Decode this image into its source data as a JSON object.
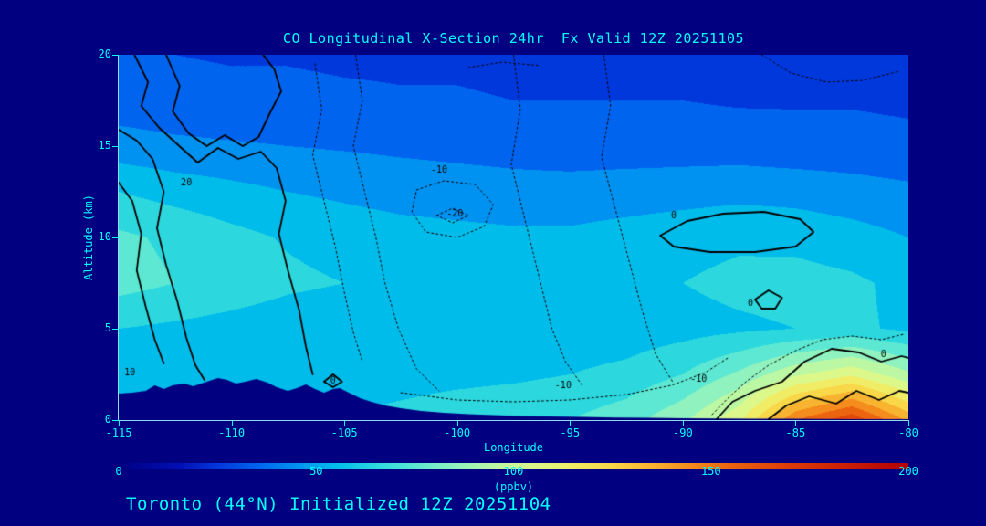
{
  "page": {
    "background": "#000080",
    "text_color": "#00ffff"
  },
  "title": "CO Longitudinal X-Section 24hr  Fx Valid 12Z 20251105",
  "footer": "Toronto (44°N) Initialized 12Z 20251104",
  "chart_data": {
    "type": "heatmap",
    "title": "CO Longitudinal X-Section 24hr  Fx Valid 12Z 20251105",
    "xlabel": "Longitude",
    "ylabel": "Altitude (km)",
    "xlim": [
      -115,
      -80
    ],
    "ylim": [
      0,
      20
    ],
    "x_ticks": [
      -115,
      -110,
      -105,
      -100,
      -95,
      -90,
      -85,
      -80
    ],
    "y_ticks": [
      0,
      5,
      10,
      15,
      20
    ],
    "colorbar": {
      "min": 0,
      "max": 200,
      "ticks": [
        0,
        50,
        100,
        150,
        200
      ],
      "label": "(ppbv)",
      "stops": [
        [
          0,
          "#000082"
        ],
        [
          15,
          "#0010B4"
        ],
        [
          25,
          "#0038DC"
        ],
        [
          35,
          "#0064EE"
        ],
        [
          45,
          "#0092F0"
        ],
        [
          55,
          "#00BCEA"
        ],
        [
          65,
          "#2CD8DE"
        ],
        [
          75,
          "#5CE8D2"
        ],
        [
          85,
          "#90F2BE"
        ],
        [
          95,
          "#BCF8A4"
        ],
        [
          105,
          "#DCF88A"
        ],
        [
          115,
          "#F0EC66"
        ],
        [
          125,
          "#F8D848"
        ],
        [
          135,
          "#F8B430"
        ],
        [
          145,
          "#F48C1E"
        ],
        [
          155,
          "#EC6410"
        ],
        [
          170,
          "#DC3C08"
        ],
        [
          185,
          "#C81E04"
        ],
        [
          200,
          "#B40000"
        ]
      ]
    },
    "grid": {
      "lons": [
        -115,
        -112.5,
        -110,
        -107.5,
        -105,
        -102.5,
        -100,
        -97.5,
        -95,
        -92.5,
        -90,
        -87.5,
        -85,
        -82.5,
        -80
      ],
      "alts": [
        0,
        2.5,
        5,
        7.5,
        10,
        12.5,
        15,
        17.5,
        20
      ],
      "values": [
        [
          58,
          58,
          58,
          58,
          60,
          63,
          66,
          68,
          70,
          76,
          88,
          108,
          150,
          168,
          138
        ],
        [
          60,
          59,
          58,
          57,
          56,
          56,
          57,
          58,
          60,
          63,
          70,
          82,
          98,
          108,
          92
        ],
        [
          60,
          58,
          56,
          54,
          53,
          52,
          52,
          52,
          53,
          54,
          56,
          58,
          60,
          62,
          58
        ],
        [
          74,
          70,
          66,
          62,
          60,
          58,
          57,
          56,
          56,
          57,
          60,
          63,
          64,
          62,
          57
        ],
        [
          72,
          68,
          63,
          59,
          56,
          54,
          53,
          52,
          52,
          54,
          56,
          58,
          57,
          54,
          50
        ],
        [
          60,
          56,
          53,
          50,
          48,
          46,
          45,
          44,
          44,
          45,
          46,
          47,
          46,
          44,
          42
        ],
        [
          44,
          42,
          41,
          40,
          39,
          38,
          37,
          36,
          35,
          35,
          35,
          35,
          34,
          34,
          33
        ],
        [
          35,
          34,
          33,
          33,
          32,
          31,
          31,
          30,
          30,
          30,
          30,
          29,
          29,
          29,
          28
        ],
        [
          30,
          30,
          29,
          29,
          28,
          28,
          28,
          27,
          27,
          27,
          26,
          26,
          26,
          25,
          25
        ]
      ]
    },
    "terrain": [
      [
        -115,
        1.45
      ],
      [
        -114.4,
        1.5
      ],
      [
        -113.8,
        1.6
      ],
      [
        -113.4,
        1.9
      ],
      [
        -113,
        1.7
      ],
      [
        -112.6,
        1.9
      ],
      [
        -112.1,
        2.0
      ],
      [
        -111.7,
        1.85
      ],
      [
        -111.1,
        2.1
      ],
      [
        -110.6,
        2.3
      ],
      [
        -110.2,
        2.2
      ],
      [
        -109.8,
        2.0
      ],
      [
        -109.4,
        2.1
      ],
      [
        -108.9,
        2.25
      ],
      [
        -108.4,
        2.05
      ],
      [
        -108,
        1.8
      ],
      [
        -107.5,
        1.6
      ],
      [
        -107.1,
        1.75
      ],
      [
        -106.7,
        1.95
      ],
      [
        -106.3,
        1.7
      ],
      [
        -105.9,
        1.5
      ],
      [
        -105.5,
        1.7
      ],
      [
        -105.2,
        1.75
      ],
      [
        -104.8,
        1.5
      ],
      [
        -104.3,
        1.2
      ],
      [
        -103.8,
        1.0
      ],
      [
        -103.2,
        0.8
      ],
      [
        -102.5,
        0.65
      ],
      [
        -101.6,
        0.5
      ],
      [
        -100.6,
        0.4
      ],
      [
        -99.5,
        0.32
      ],
      [
        -98.4,
        0.27
      ],
      [
        -97.2,
        0.23
      ],
      [
        -96,
        0.2
      ],
      [
        -94.5,
        0.17
      ],
      [
        -93,
        0.14
      ],
      [
        -91.5,
        0.12
      ],
      [
        -90,
        0.1
      ],
      [
        -88.5,
        0.09
      ],
      [
        -87,
        0.08
      ],
      [
        -85.5,
        0.07
      ],
      [
        -84,
        0.06
      ],
      [
        -82.5,
        0.05
      ],
      [
        -81,
        0.05
      ],
      [
        -80,
        0.05
      ]
    ],
    "contours": {
      "solid": [
        [
          [
            -114.3,
            20
          ],
          [
            -113.7,
            18.5
          ],
          [
            -114,
            17.2
          ],
          [
            -113.2,
            16
          ],
          [
            -112.4,
            15.1
          ],
          [
            -111.5,
            14.1
          ],
          [
            -110.6,
            14.9
          ],
          [
            -109.7,
            14.3
          ],
          [
            -108.7,
            14.7
          ],
          [
            -108,
            13.8
          ],
          [
            -107.6,
            12
          ],
          [
            -107.9,
            10.2
          ],
          [
            -107.5,
            8.2
          ],
          [
            -107,
            6
          ],
          [
            -106.7,
            4
          ],
          [
            -106.4,
            2.5
          ]
        ],
        [
          [
            -112.9,
            20
          ],
          [
            -112.3,
            18.3
          ],
          [
            -112.6,
            16.9
          ],
          [
            -111.9,
            15.7
          ],
          [
            -111.1,
            15
          ],
          [
            -110.3,
            15.6
          ],
          [
            -109.5,
            15
          ],
          [
            -108.8,
            15.5
          ],
          [
            -108.3,
            16.8
          ],
          [
            -107.8,
            18
          ],
          [
            -108.1,
            19.2
          ],
          [
            -108.6,
            20
          ]
        ],
        [
          [
            -115,
            15.9
          ],
          [
            -114.2,
            15.3
          ],
          [
            -113.5,
            14.3
          ],
          [
            -113,
            12.5
          ],
          [
            -113.3,
            10.5
          ],
          [
            -112.9,
            8.5
          ],
          [
            -112.4,
            6.5
          ],
          [
            -112,
            4.5
          ],
          [
            -111.6,
            3
          ],
          [
            -111.2,
            2.2
          ]
        ],
        [
          [
            -115,
            13
          ],
          [
            -114.4,
            12
          ],
          [
            -114,
            10.2
          ],
          [
            -114.2,
            8.2
          ],
          [
            -113.8,
            6.2
          ],
          [
            -113.4,
            4.4
          ],
          [
            -113,
            3.1
          ]
        ],
        [
          [
            -91,
            10.1
          ],
          [
            -89.8,
            10.9
          ],
          [
            -88.2,
            11.3
          ],
          [
            -86.4,
            11.4
          ],
          [
            -84.8,
            11
          ],
          [
            -84.2,
            10.3
          ],
          [
            -85,
            9.5
          ],
          [
            -86.8,
            9.2
          ],
          [
            -88.8,
            9.2
          ],
          [
            -90.4,
            9.5
          ],
          [
            -91,
            10.1
          ]
        ],
        [
          [
            -86.8,
            6.6
          ],
          [
            -86.2,
            7.1
          ],
          [
            -85.6,
            6.7
          ],
          [
            -85.9,
            6.1
          ],
          [
            -86.5,
            6.1
          ],
          [
            -86.8,
            6.6
          ]
        ],
        [
          [
            -88.5,
            0.05
          ],
          [
            -87.8,
            1
          ],
          [
            -86.8,
            1.6
          ],
          [
            -85.6,
            2.1
          ],
          [
            -84.6,
            3.2
          ],
          [
            -83.4,
            3.9
          ],
          [
            -82.2,
            3.7
          ],
          [
            -81.2,
            3.2
          ],
          [
            -80.3,
            3.5
          ],
          [
            -80,
            3.4
          ]
        ],
        [
          [
            -86.2,
            0.05
          ],
          [
            -85.4,
            0.8
          ],
          [
            -84.4,
            1.3
          ],
          [
            -83.2,
            0.9
          ],
          [
            -82.3,
            1.6
          ],
          [
            -81.3,
            1.1
          ],
          [
            -80.4,
            1.6
          ],
          [
            -80,
            1.5
          ]
        ],
        [
          [
            -105.9,
            2.1
          ],
          [
            -105.5,
            2.5
          ],
          [
            -105.1,
            2.1
          ],
          [
            -105.5,
            1.8
          ],
          [
            -105.9,
            2.1
          ]
        ]
      ],
      "dotted": [
        [
          [
            -104.5,
            20
          ],
          [
            -104.2,
            17.5
          ],
          [
            -104.6,
            15
          ],
          [
            -104.1,
            12.5
          ],
          [
            -103.6,
            10
          ],
          [
            -103.2,
            7.5
          ],
          [
            -102.6,
            5
          ],
          [
            -101.8,
            2.8
          ],
          [
            -100.8,
            1.6
          ]
        ],
        [
          [
            -101.8,
            12.6
          ],
          [
            -100.6,
            13.1
          ],
          [
            -99.2,
            12.9
          ],
          [
            -98.4,
            11.8
          ],
          [
            -98.8,
            10.6
          ],
          [
            -100,
            10
          ],
          [
            -101.4,
            10.3
          ],
          [
            -102,
            11.4
          ],
          [
            -101.8,
            12.6
          ]
        ],
        [
          [
            -100.9,
            11.2
          ],
          [
            -100.2,
            11.6
          ],
          [
            -99.5,
            11.2
          ],
          [
            -100.2,
            10.8
          ],
          [
            -100.9,
            11.2
          ]
        ],
        [
          [
            -106.3,
            19.5
          ],
          [
            -106,
            17
          ],
          [
            -106.4,
            14.5
          ],
          [
            -105.9,
            12
          ],
          [
            -105.4,
            9.5
          ],
          [
            -105,
            7
          ],
          [
            -104.6,
            4.8
          ],
          [
            -104.2,
            3.2
          ]
        ],
        [
          [
            -97.5,
            20
          ],
          [
            -97.2,
            17
          ],
          [
            -97.6,
            14
          ],
          [
            -97,
            11
          ],
          [
            -96.4,
            8
          ],
          [
            -95.8,
            5
          ],
          [
            -95.2,
            3.2
          ],
          [
            -94.4,
            1.8
          ]
        ],
        [
          [
            -93.5,
            20
          ],
          [
            -93.2,
            17.2
          ],
          [
            -93.6,
            14.4
          ],
          [
            -93,
            11.6
          ],
          [
            -92.4,
            8.8
          ],
          [
            -91.8,
            6
          ],
          [
            -91.2,
            3.6
          ],
          [
            -90.4,
            2
          ]
        ],
        [
          [
            -86.5,
            20
          ],
          [
            -85.2,
            19
          ],
          [
            -83.6,
            18.5
          ],
          [
            -82,
            18.6
          ],
          [
            -80.4,
            19.1
          ]
        ],
        [
          [
            -99.5,
            19.3
          ],
          [
            -98,
            19.6
          ],
          [
            -96.3,
            19.4
          ]
        ],
        [
          [
            -102.5,
            1.5
          ],
          [
            -100,
            1.1
          ],
          [
            -97.5,
            1.0
          ],
          [
            -95,
            1.1
          ],
          [
            -92.5,
            1.4
          ],
          [
            -90.5,
            1.9
          ],
          [
            -89,
            2.6
          ],
          [
            -88,
            3.4
          ]
        ],
        [
          [
            -88.7,
            0.3
          ],
          [
            -88,
            1.2
          ],
          [
            -87.2,
            2.1
          ],
          [
            -86.2,
            3
          ],
          [
            -85,
            3.8
          ],
          [
            -83.8,
            4.4
          ],
          [
            -82.5,
            4.6
          ],
          [
            -81.2,
            4.4
          ],
          [
            -80.2,
            4.7
          ]
        ]
      ],
      "labels": [
        {
          "text": "10",
          "lon": -114.5,
          "km": 2.6
        },
        {
          "text": "20",
          "lon": -112.0,
          "km": 13.0
        },
        {
          "text": "-10",
          "lon": -100.8,
          "km": 13.7
        },
        {
          "text": "-20",
          "lon": -100.1,
          "km": 11.3
        },
        {
          "text": "0",
          "lon": -105.5,
          "km": 2.15
        },
        {
          "text": "-10",
          "lon": -95.3,
          "km": 1.9
        },
        {
          "text": "-10",
          "lon": -89.3,
          "km": 2.25
        },
        {
          "text": "0",
          "lon": -90.4,
          "km": 11.2
        },
        {
          "text": "0",
          "lon": -87.0,
          "km": 6.4
        },
        {
          "text": "0",
          "lon": -81.1,
          "km": 3.6
        }
      ]
    }
  }
}
